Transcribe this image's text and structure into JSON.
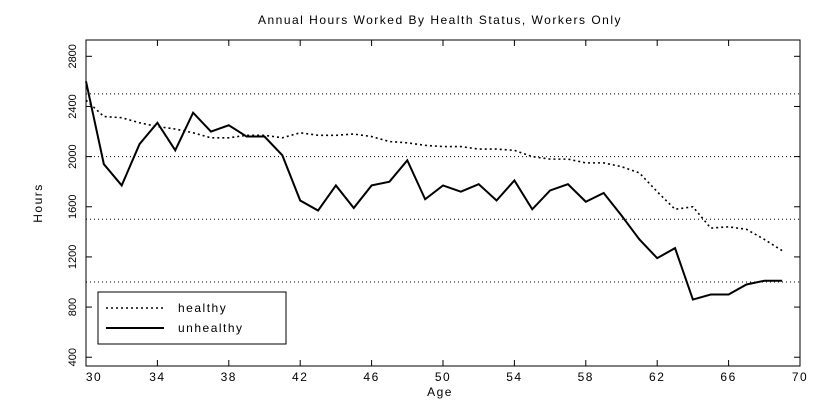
{
  "chart_data": {
    "type": "line",
    "title": "Annual Hours Worked By Health Status, Workers Only",
    "x_label": "Age",
    "y_label": "Hours",
    "x": [
      30,
      31,
      32,
      33,
      34,
      35,
      36,
      37,
      38,
      39,
      40,
      41,
      42,
      43,
      44,
      45,
      46,
      47,
      48,
      49,
      50,
      51,
      52,
      53,
      54,
      55,
      56,
      57,
      58,
      59,
      60,
      61,
      62,
      63,
      64,
      65,
      66,
      67,
      68,
      69
    ],
    "series": [
      {
        "name": "healthy",
        "color": "#000000",
        "dash": "dotted",
        "values": [
          2450,
          2320,
          2310,
          2270,
          2240,
          2220,
          2190,
          2150,
          2150,
          2170,
          2170,
          2150,
          2190,
          2170,
          2170,
          2180,
          2160,
          2120,
          2110,
          2090,
          2080,
          2080,
          2060,
          2060,
          2050,
          2000,
          1980,
          1980,
          1950,
          1950,
          1920,
          1870,
          1720,
          1580,
          1600,
          1430,
          1440,
          1420,
          1340,
          1250
        ]
      },
      {
        "name": "unhealthy",
        "color": "#000000",
        "dash": "solid",
        "values": [
          2600,
          1940,
          1770,
          2100,
          2270,
          2050,
          2350,
          2200,
          2250,
          2160,
          2160,
          2010,
          1650,
          1570,
          1770,
          1590,
          1770,
          1800,
          1970,
          1660,
          1770,
          1720,
          1780,
          1650,
          1810,
          1580,
          1730,
          1780,
          1640,
          1710,
          1530,
          1340,
          1190,
          1270,
          860,
          900,
          900,
          980,
          1010,
          1010
        ]
      }
    ],
    "xlim": [
      30,
      70
    ],
    "xticks": [
      30,
      34,
      38,
      42,
      46,
      50,
      54,
      58,
      62,
      66,
      70
    ],
    "ylim": [
      330,
      2930
    ],
    "yticks": [
      400,
      800,
      1200,
      1600,
      2000,
      2400,
      2800
    ],
    "grid_lines": [
      1000,
      1500,
      2000,
      2500
    ],
    "legend": "lower left"
  }
}
